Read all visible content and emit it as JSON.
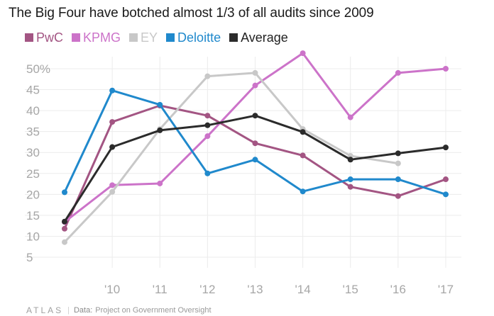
{
  "title": "The Big Four have botched almost 1/3 of all audits since 2009",
  "footer": {
    "brand": "ATLAS",
    "source_label": "Data:",
    "source": "Project on Government Oversight"
  },
  "chart_data": {
    "type": "line",
    "title": "The Big Four have botched almost 1/3 of all audits since 2009",
    "x": [
      2009,
      2010,
      2011,
      2012,
      2013,
      2014,
      2015,
      2016,
      2017
    ],
    "x_tick_labels": [
      "'10",
      "'11",
      "'12",
      "'13",
      "'14",
      "'15",
      "'16",
      "'17"
    ],
    "x_tick_values": [
      2010,
      2011,
      2012,
      2013,
      2014,
      2015,
      2016,
      2017
    ],
    "y_ticks": [
      5,
      10,
      15,
      20,
      25,
      30,
      35,
      40,
      45,
      50
    ],
    "y_tick_labels": [
      "5",
      "10",
      "15",
      "20",
      "25",
      "30",
      "35",
      "40",
      "45",
      "50%"
    ],
    "ylim": [
      0,
      52
    ],
    "xlim": [
      2008.85,
      2017.25
    ],
    "grid": true,
    "legend_position": "top-left",
    "series": [
      {
        "name": "PwC",
        "color": "#a35583",
        "values": [
          11.8,
          37.3,
          41.2,
          38.8,
          32.2,
          29.3,
          21.8,
          19.6,
          23.6
        ]
      },
      {
        "name": "KPMG",
        "color": "#cc73c9",
        "values": [
          13.4,
          22.2,
          22.6,
          33.9,
          46.0,
          53.7,
          38.4,
          49.0,
          50.0
        ]
      },
      {
        "name": "EY",
        "color": "#c8c8c8",
        "values": [
          8.6,
          20.6,
          35.6,
          48.2,
          49.0,
          35.6,
          29.2,
          27.4,
          null
        ]
      },
      {
        "name": "Deloitte",
        "color": "#2089cc",
        "values": [
          20.5,
          44.8,
          41.4,
          25.0,
          28.3,
          20.7,
          23.6,
          23.6,
          20.0
        ]
      },
      {
        "name": "Average",
        "color": "#2b2b2b",
        "values": [
          13.5,
          31.3,
          35.3,
          36.5,
          38.8,
          34.9,
          28.3,
          29.8,
          31.2
        ]
      }
    ]
  }
}
